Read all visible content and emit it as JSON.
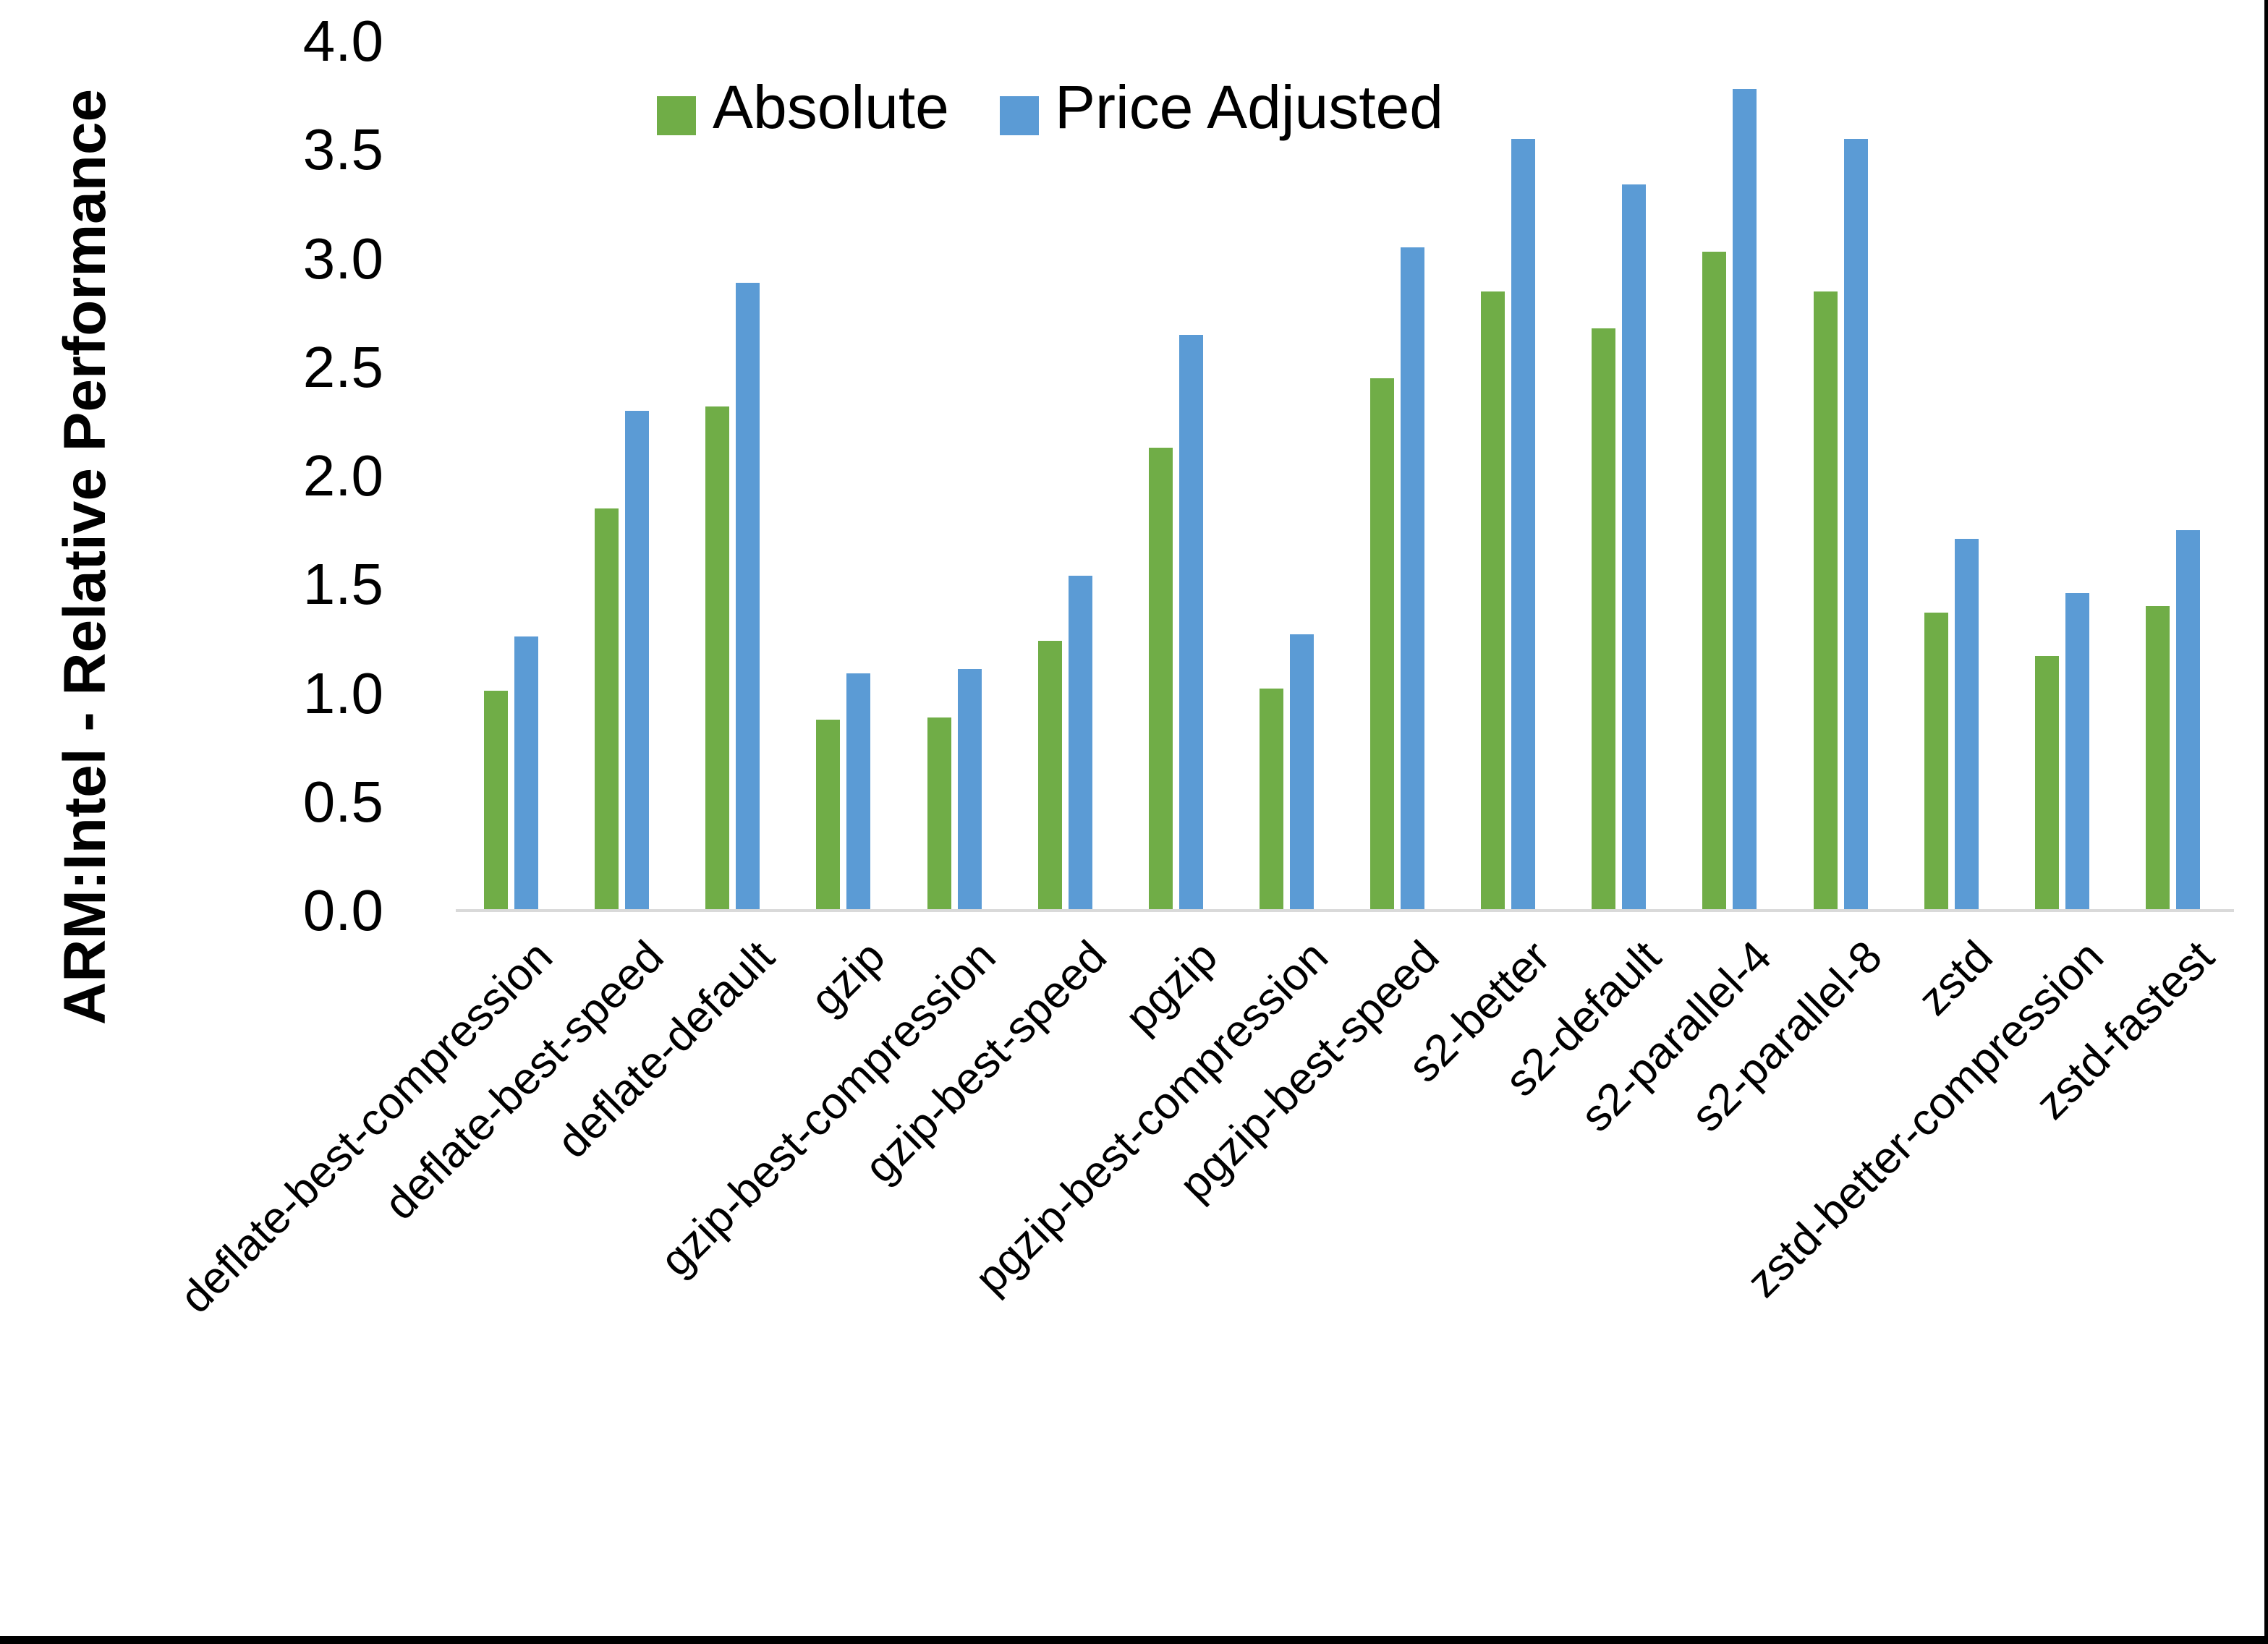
{
  "chart_data": {
    "type": "bar",
    "title": "",
    "xlabel": "",
    "ylabel": "ARM:Intel - Relative Performance",
    "ylim": [
      0.0,
      4.0
    ],
    "ytick_step": 0.5,
    "ytick_labels": [
      "0.0",
      "0.5",
      "1.0",
      "1.5",
      "2.0",
      "2.5",
      "3.0",
      "3.5",
      "4.0"
    ],
    "grid": "off",
    "legend_position": "top-center",
    "axis_line_color": "#d9d9d9",
    "text_color": "#000000",
    "background_color": "#ffffff",
    "categories": [
      "deflate-best-compression",
      "deflate-best-speed",
      "deflate-default",
      "gzip",
      "gzip-best-compression",
      "gzip-best-speed",
      "pgzip",
      "pgzip-best-compression",
      "pgzip-best-speed",
      "s2-better",
      "s2-default",
      "s2-parallel-4",
      "s2-parallel-8",
      "zstd",
      "zstd-better-compression",
      "zstd-fastest"
    ],
    "series": [
      {
        "name": "Absolute",
        "color": "#70ad47",
        "values": [
          1.01,
          1.85,
          2.32,
          0.88,
          0.89,
          1.24,
          2.13,
          1.02,
          2.45,
          2.85,
          2.68,
          3.03,
          2.85,
          1.37,
          1.17,
          1.4
        ]
      },
      {
        "name": "Price Adjusted",
        "color": "#5b9bd5",
        "values": [
          1.26,
          2.3,
          2.89,
          1.09,
          1.11,
          1.54,
          2.65,
          1.27,
          3.05,
          3.55,
          3.34,
          3.78,
          3.55,
          1.71,
          1.46,
          1.75
        ]
      }
    ]
  }
}
